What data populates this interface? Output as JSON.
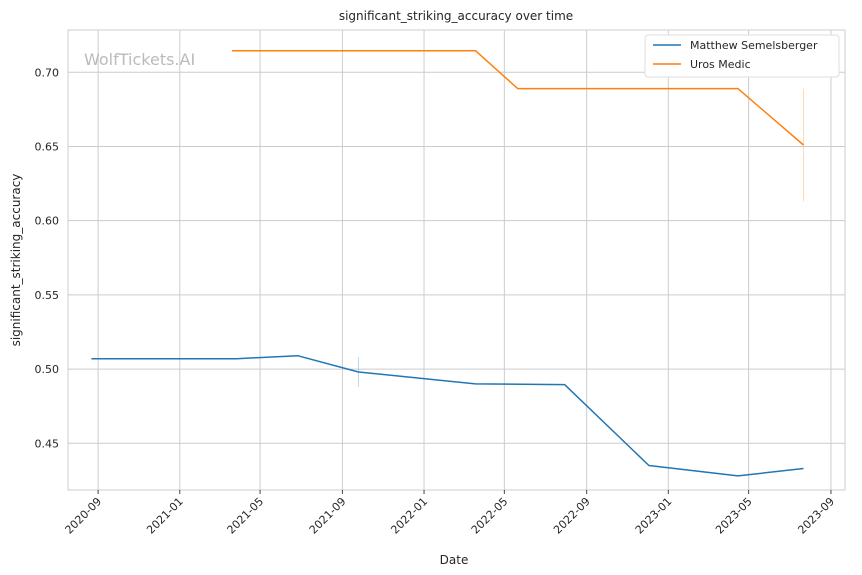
{
  "chart_data": {
    "type": "line",
    "title": "significant_striking_accuracy over time",
    "xlabel": "Date",
    "ylabel": "significant_striking_accuracy",
    "watermark": "WolfTickets.AI",
    "x_ticks": [
      "2020-09",
      "2021-01",
      "2021-05",
      "2021-09",
      "2022-01",
      "2022-05",
      "2022-09",
      "2023-01",
      "2023-05",
      "2023-09"
    ],
    "y_ticks": [
      "0.45",
      "0.50",
      "0.55",
      "0.60",
      "0.65",
      "0.70"
    ],
    "xlim": [
      "2020-07-18",
      "2023-09-22"
    ],
    "ylim": [
      0.4185,
      0.7285
    ],
    "grid": true,
    "legend_position": "top-right",
    "series": [
      {
        "name": "Matthew Semelsberger",
        "color": "#1f77b4",
        "points": [
          {
            "x": "2020-08-22",
            "y": 0.507
          },
          {
            "x": "2021-03-27",
            "y": 0.507
          },
          {
            "x": "2021-06-26",
            "y": 0.509
          },
          {
            "x": "2021-09-25",
            "y": 0.498
          },
          {
            "x": "2022-03-19",
            "y": 0.49
          },
          {
            "x": "2022-07-30",
            "y": 0.4895
          },
          {
            "x": "2022-12-03",
            "y": 0.435
          },
          {
            "x": "2023-04-15",
            "y": 0.428
          },
          {
            "x": "2023-07-22",
            "y": 0.433
          }
        ],
        "error_bars": [
          {
            "x": "2021-09-25",
            "low": 0.488,
            "high": 0.508
          }
        ]
      },
      {
        "name": "Uros Medic",
        "color": "#ff7f0e",
        "points": [
          {
            "x": "2021-03-20",
            "y": 0.7145
          },
          {
            "x": "2022-03-19",
            "y": 0.7145
          },
          {
            "x": "2022-05-21",
            "y": 0.689
          },
          {
            "x": "2023-04-15",
            "y": 0.689
          },
          {
            "x": "2023-07-22",
            "y": 0.651
          }
        ],
        "error_bars": [
          {
            "x": "2023-07-22",
            "low": 0.613,
            "high": 0.689
          }
        ]
      }
    ]
  }
}
